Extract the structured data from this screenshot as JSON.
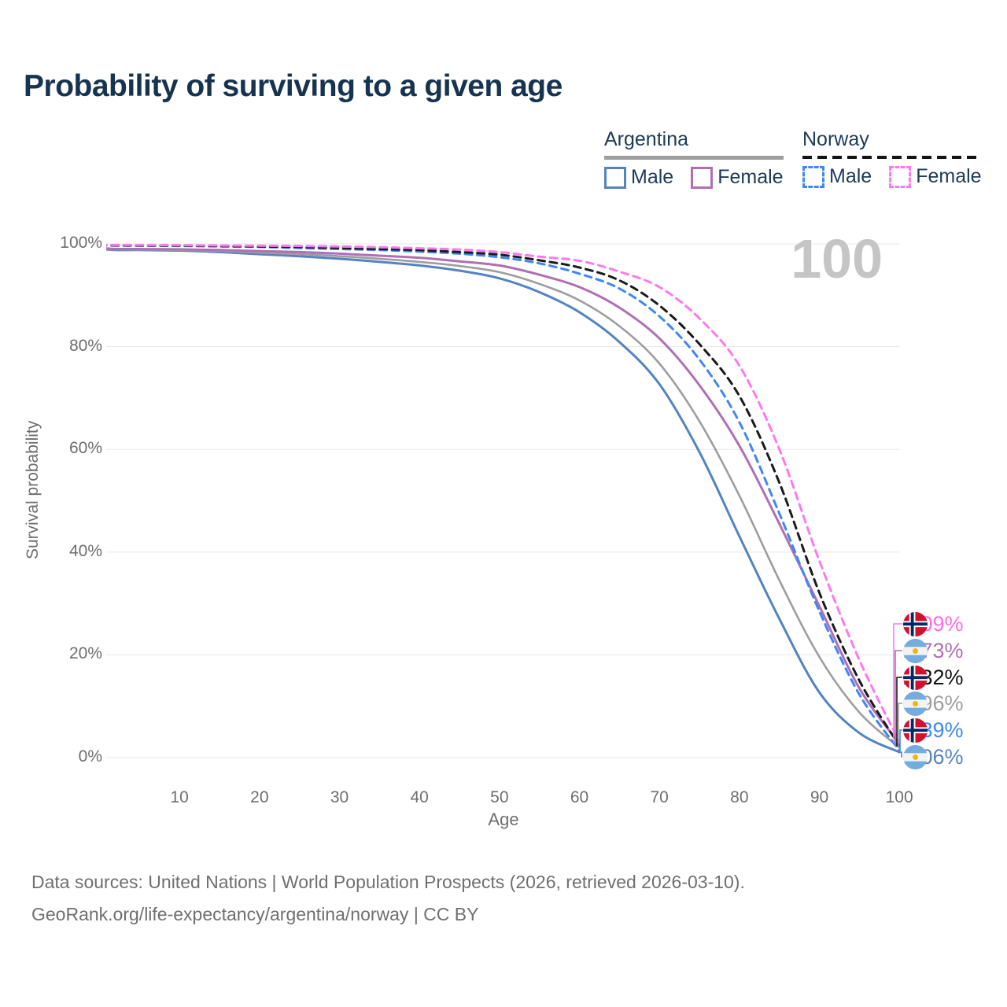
{
  "title": "Probability of surviving to a given age",
  "annotation": "100",
  "legend": {
    "groups": [
      {
        "country": "Argentina",
        "line_style": "solid",
        "underline_color": "#9e9e9e",
        "items": [
          {
            "label": "Male",
            "color": "#5483c2",
            "dashed": false
          },
          {
            "label": "Female",
            "color": "#b06fb3",
            "dashed": false
          }
        ]
      },
      {
        "country": "Norway",
        "line_style": "dashed",
        "underline_color": "#141414",
        "items": [
          {
            "label": "Male",
            "color": "#3f87f5",
            "dashed": true
          },
          {
            "label": "Female",
            "color": "#ff78ee",
            "dashed": true
          }
        ]
      }
    ]
  },
  "chart_data": {
    "type": "line",
    "title": "Probability of surviving to a given age",
    "xlabel": "Age",
    "ylabel": "Survival probability",
    "xlim": [
      0,
      100
    ],
    "ylim": [
      0,
      100
    ],
    "grid": true,
    "x_ticks": [
      10,
      20,
      30,
      40,
      50,
      60,
      70,
      80,
      90,
      100
    ],
    "y_ticks": [
      "0%",
      "20%",
      "40%",
      "60%",
      "80%",
      "100%"
    ],
    "ages": [
      0,
      1,
      5,
      10,
      15,
      20,
      25,
      30,
      35,
      40,
      45,
      50,
      55,
      60,
      65,
      70,
      75,
      80,
      85,
      90,
      95,
      100
    ],
    "series": [
      {
        "name": "Argentina Male",
        "country": "Argentina",
        "sex": "Male",
        "flag": "argentina",
        "color": "#5483c2",
        "label_color": "#5483c2",
        "dashed": false,
        "end_label": "1.06%",
        "values": [
          100,
          98.9,
          98.8,
          98.7,
          98.4,
          98.0,
          97.6,
          97.1,
          96.5,
          95.8,
          94.8,
          93.3,
          90.6,
          86.7,
          80.9,
          72.7,
          59.5,
          43.1,
          27.0,
          12.7,
          4.8,
          1.06
        ]
      },
      {
        "name": "Argentina Both sexes",
        "country": "Argentina",
        "sex": "Both",
        "flag": "argentina",
        "color": "#9e9e9e",
        "label_color": "#9e9e9e",
        "dashed": false,
        "end_label": "1.96%",
        "values": [
          100,
          99.0,
          98.9,
          98.8,
          98.6,
          98.3,
          98.0,
          97.6,
          97.1,
          96.5,
          95.7,
          94.5,
          92.2,
          89.0,
          84.0,
          76.7,
          65.5,
          51.0,
          34.5,
          19.6,
          8.8,
          1.96
        ]
      },
      {
        "name": "Argentina Female",
        "country": "Argentina",
        "sex": "Female",
        "flag": "argentina",
        "color": "#b06fb3",
        "label_color": "#b06fb3",
        "dashed": false,
        "end_label": "2.73%",
        "values": [
          100,
          99.1,
          99.0,
          98.95,
          98.8,
          98.6,
          98.4,
          98.1,
          97.7,
          97.3,
          96.6,
          95.8,
          94.0,
          91.6,
          87.6,
          81.6,
          72.5,
          60.7,
          45.5,
          29.5,
          13.5,
          2.73
        ]
      },
      {
        "name": "Norway Male",
        "country": "Norway",
        "sex": "Male",
        "flag": "norway",
        "color": "#3f87f5",
        "label_color": "#3f87f5",
        "dashed": true,
        "end_label": "1.39%",
        "values": [
          100,
          99.7,
          99.65,
          99.6,
          99.5,
          99.4,
          99.2,
          99.0,
          98.8,
          98.5,
          98.1,
          97.4,
          96.2,
          94.2,
          91.3,
          85.9,
          77.5,
          65.3,
          47.5,
          28.5,
          12.3,
          1.39
        ]
      },
      {
        "name": "Norway Both sexes",
        "country": "Norway",
        "sex": "Both",
        "flag": "norway",
        "color": "#1a1a1a",
        "label_color": "#111111",
        "dashed": true,
        "end_label": "2.32%",
        "values": [
          100,
          99.75,
          99.7,
          99.68,
          99.6,
          99.5,
          99.4,
          99.2,
          99.0,
          98.8,
          98.4,
          97.9,
          96.8,
          95.4,
          92.9,
          88.0,
          80.5,
          70.4,
          53.5,
          32.1,
          15.0,
          2.32
        ]
      },
      {
        "name": "Norway Female",
        "country": "Norway",
        "sex": "Female",
        "flag": "norway",
        "color": "#ff78ee",
        "label_color": "#ff6ae8",
        "dashed": true,
        "end_label": "3.09%",
        "values": [
          100,
          99.8,
          99.78,
          99.75,
          99.7,
          99.65,
          99.6,
          99.5,
          99.35,
          99.15,
          98.9,
          98.4,
          97.5,
          96.7,
          94.6,
          91.6,
          85.5,
          76.3,
          60.0,
          38.3,
          19.0,
          3.09
        ]
      }
    ],
    "end_label_order": [
      "Norway Female",
      "Argentina Female",
      "Norway Both sexes",
      "Argentina Both sexes",
      "Norway Male",
      "Argentina Male"
    ],
    "legend_position": "top-right"
  },
  "footer": {
    "line1": "Data sources: United Nations | World Population Prospects (2026, retrieved 2026-03-10).",
    "line2": "GeoRank.org/life-expectancy/argentina/norway | CC BY"
  }
}
